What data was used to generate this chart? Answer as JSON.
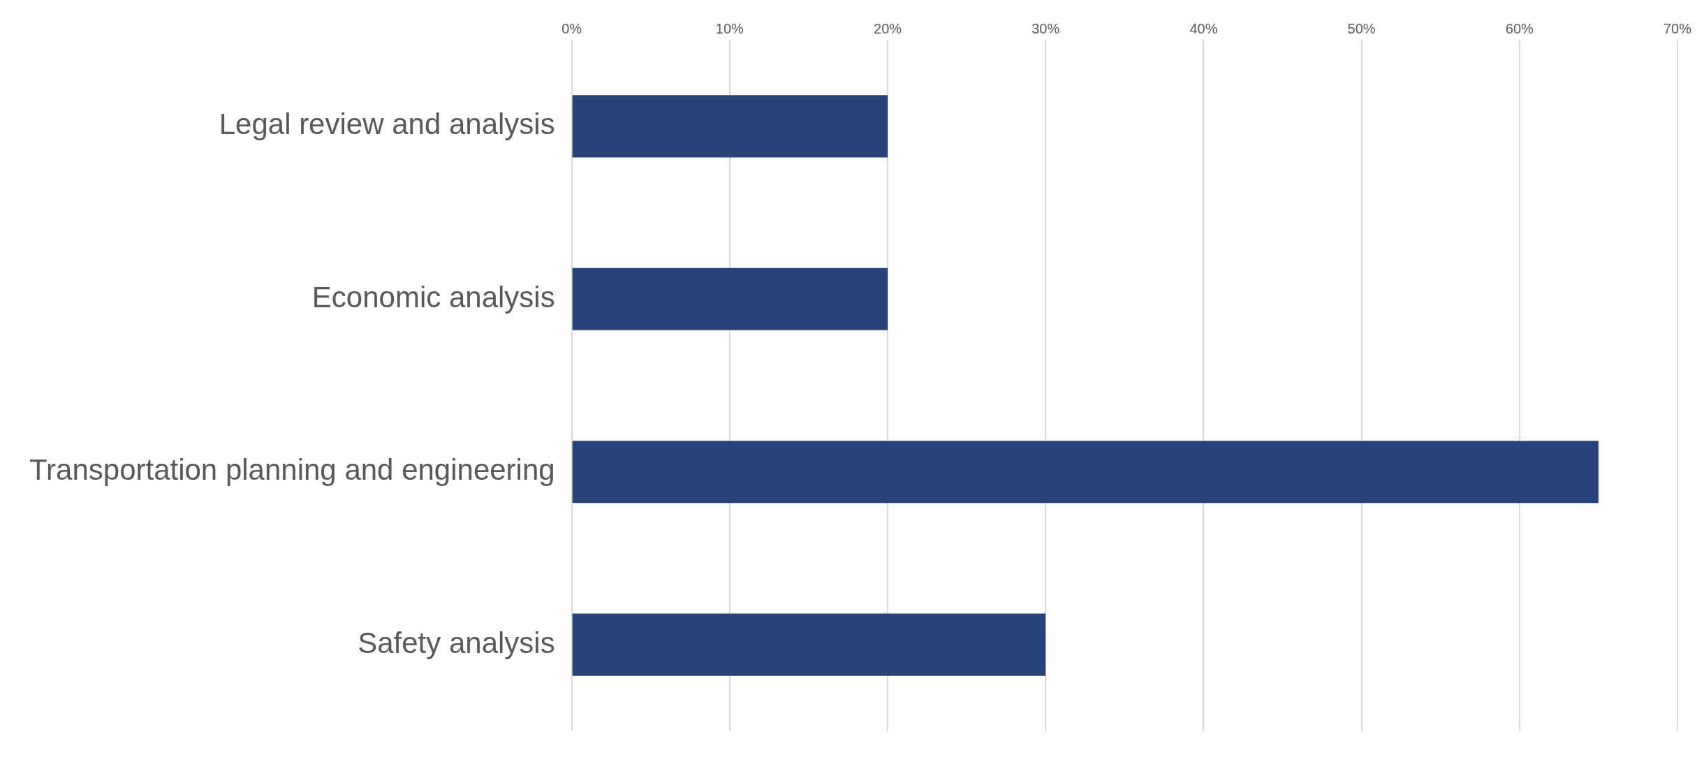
{
  "chart_data": {
    "type": "bar",
    "orientation": "horizontal",
    "categories": [
      "Legal review and analysis",
      "Economic analysis",
      "Transportation planning and engineering",
      "Safety analysis"
    ],
    "values": [
      20,
      20,
      65,
      30
    ],
    "color": "#264478",
    "xlim": [
      0,
      70
    ],
    "xticks": [
      {
        "value": 0,
        "label": "0%"
      },
      {
        "value": 10,
        "label": "10%"
      },
      {
        "value": 20,
        "label": "20%"
      },
      {
        "value": 30,
        "label": "30%"
      },
      {
        "value": 40,
        "label": "40%"
      },
      {
        "value": 50,
        "label": "50%"
      },
      {
        "value": 60,
        "label": "60%"
      },
      {
        "value": 70,
        "label": "70%"
      }
    ],
    "grid": "x",
    "legend": false
  }
}
